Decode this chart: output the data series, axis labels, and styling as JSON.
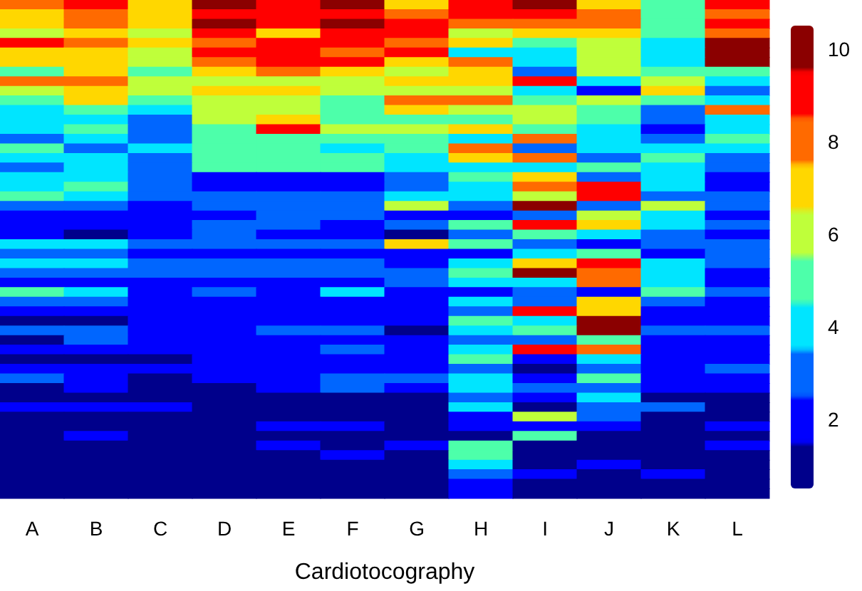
{
  "chart_data": {
    "type": "heatmap",
    "xlabel": "Cardiotocography",
    "categories": [
      "A",
      "B",
      "C",
      "D",
      "E",
      "F",
      "G",
      "H",
      "I",
      "J",
      "K",
      "L"
    ],
    "y_categories": [
      null,
      null,
      null,
      null,
      null,
      null,
      null,
      null,
      null,
      null,
      null,
      null,
      null,
      null,
      null,
      null,
      null,
      null,
      null,
      null,
      null,
      null,
      null,
      null,
      null,
      null,
      null,
      null,
      null,
      null,
      null,
      null,
      null,
      null,
      null,
      null,
      null,
      null,
      null,
      null,
      null,
      null,
      null,
      null,
      null,
      null,
      null,
      null,
      null,
      null,
      null,
      null
    ],
    "clim": [
      0.5,
      10.5
    ],
    "cticks": [
      2,
      4,
      6,
      8,
      10
    ],
    "colors": [
      "#00008b",
      "#0000ff",
      "#0066ff",
      "#00e5ff",
      "#4dffaa",
      "#bfff3a",
      "#ffd700",
      "#ff6a00",
      "#ff0000",
      "#8b0000"
    ],
    "cells": [
      [
        8,
        9,
        7,
        10,
        9,
        10,
        7,
        9,
        10,
        7,
        5,
        9
      ],
      [
        7,
        8,
        7,
        9,
        9,
        9,
        8,
        9,
        9,
        8,
        5,
        8
      ],
      [
        7,
        8,
        7,
        10,
        9,
        10,
        9,
        8,
        8,
        8,
        5,
        9
      ],
      [
        6,
        7,
        6,
        9,
        7,
        9,
        9,
        6,
        7,
        7,
        5,
        8
      ],
      [
        9,
        8,
        7,
        8,
        9,
        9,
        8,
        7,
        5,
        6,
        4,
        10
      ],
      [
        7,
        7,
        6,
        9,
        9,
        8,
        9,
        4,
        4,
        6,
        4,
        10
      ],
      [
        7,
        7,
        6,
        8,
        9,
        9,
        7,
        8,
        4,
        6,
        4,
        10
      ],
      [
        5,
        7,
        5,
        7,
        8,
        7,
        6,
        7,
        3,
        6,
        5,
        5
      ],
      [
        8,
        8,
        6,
        6,
        6,
        6,
        7,
        7,
        9,
        4,
        6,
        4
      ],
      [
        6,
        7,
        6,
        7,
        7,
        6,
        6,
        6,
        4,
        2,
        7,
        3
      ],
      [
        5,
        7,
        5,
        6,
        6,
        5,
        8,
        8,
        5,
        6,
        5,
        4
      ],
      [
        4,
        5,
        4,
        6,
        6,
        5,
        7,
        6,
        6,
        5,
        3,
        8
      ],
      [
        4,
        4,
        3,
        6,
        7,
        5,
        5,
        5,
        6,
        5,
        3,
        4
      ],
      [
        4,
        5,
        3,
        5,
        9,
        6,
        6,
        7,
        5,
        4,
        2,
        4
      ],
      [
        3,
        4,
        3,
        5,
        5,
        5,
        5,
        4,
        8,
        4,
        3,
        5
      ],
      [
        5,
        3,
        4,
        5,
        5,
        4,
        5,
        8,
        3,
        4,
        4,
        4
      ],
      [
        4,
        4,
        3,
        5,
        5,
        5,
        4,
        7,
        8,
        3,
        5,
        3
      ],
      [
        3,
        4,
        3,
        5,
        5,
        5,
        4,
        4,
        4,
        5,
        4,
        3
      ],
      [
        4,
        4,
        3,
        2,
        2,
        2,
        3,
        5,
        7,
        3,
        4,
        2
      ],
      [
        4,
        5,
        3,
        2,
        2,
        2,
        3,
        4,
        8,
        9,
        4,
        2
      ],
      [
        5,
        4,
        3,
        3,
        3,
        3,
        4,
        4,
        6,
        9,
        3,
        3
      ],
      [
        3,
        3,
        2,
        3,
        3,
        3,
        6,
        3,
        10,
        3,
        6,
        3
      ],
      [
        2,
        2,
        2,
        2,
        3,
        3,
        2,
        2,
        3,
        6,
        4,
        2
      ],
      [
        2,
        2,
        2,
        3,
        3,
        2,
        3,
        5,
        9,
        7,
        4,
        3
      ],
      [
        2,
        1,
        2,
        3,
        2,
        2,
        1,
        3,
        5,
        4,
        3,
        2
      ],
      [
        4,
        4,
        3,
        3,
        3,
        3,
        7,
        5,
        3,
        2,
        3,
        3
      ],
      [
        3,
        3,
        2,
        2,
        2,
        2,
        2,
        2,
        4,
        5,
        2,
        3
      ],
      [
        4,
        4,
        3,
        3,
        3,
        3,
        2,
        4,
        7,
        9,
        4,
        3
      ],
      [
        3,
        3,
        3,
        3,
        3,
        3,
        3,
        5,
        10,
        8,
        4,
        2
      ],
      [
        2,
        2,
        2,
        2,
        2,
        2,
        3,
        4,
        4,
        8,
        4,
        2
      ],
      [
        5,
        4,
        2,
        3,
        2,
        4,
        2,
        2,
        3,
        2,
        5,
        3
      ],
      [
        3,
        3,
        2,
        2,
        2,
        2,
        2,
        4,
        3,
        7,
        3,
        2
      ],
      [
        2,
        2,
        2,
        2,
        2,
        2,
        2,
        3,
        9,
        7,
        2,
        2
      ],
      [
        1,
        1,
        2,
        2,
        2,
        2,
        2,
        5,
        4,
        10,
        2,
        2
      ],
      [
        3,
        3,
        2,
        2,
        3,
        3,
        1,
        4,
        5,
        10,
        3,
        3
      ],
      [
        1,
        3,
        2,
        2,
        2,
        2,
        2,
        3,
        3,
        5,
        2,
        2
      ],
      [
        2,
        2,
        2,
        2,
        2,
        3,
        2,
        4,
        9,
        8,
        2,
        2
      ],
      [
        1,
        1,
        1,
        2,
        2,
        2,
        2,
        5,
        2,
        4,
        2,
        2
      ],
      [
        2,
        2,
        2,
        2,
        2,
        2,
        2,
        3,
        1,
        3,
        2,
        3
      ],
      [
        3,
        2,
        1,
        2,
        2,
        3,
        3,
        4,
        2,
        5,
        2,
        2
      ],
      [
        1,
        2,
        1,
        1,
        2,
        3,
        2,
        4,
        3,
        3,
        2,
        2
      ],
      [
        1,
        1,
        1,
        1,
        1,
        1,
        1,
        3,
        2,
        4,
        1,
        1
      ],
      [
        2,
        2,
        2,
        1,
        1,
        1,
        1,
        4,
        1,
        3,
        3,
        1
      ],
      [
        1,
        1,
        1,
        1,
        1,
        1,
        1,
        2,
        6,
        3,
        1,
        1
      ],
      [
        1,
        1,
        1,
        1,
        2,
        2,
        1,
        2,
        2,
        2,
        1,
        2
      ],
      [
        1,
        2,
        1,
        1,
        1,
        1,
        1,
        1,
        5,
        1,
        1,
        1
      ],
      [
        1,
        1,
        1,
        1,
        2,
        1,
        2,
        5,
        1,
        1,
        1,
        2
      ],
      [
        1,
        1,
        1,
        1,
        1,
        2,
        1,
        5,
        1,
        1,
        1,
        1
      ],
      [
        1,
        1,
        1,
        1,
        1,
        1,
        1,
        4,
        1,
        2,
        1,
        1
      ],
      [
        1,
        1,
        1,
        1,
        1,
        1,
        1,
        3,
        2,
        1,
        2,
        1
      ],
      [
        1,
        1,
        1,
        1,
        1,
        1,
        1,
        2,
        1,
        1,
        1,
        1
      ],
      [
        1,
        1,
        1,
        1,
        1,
        1,
        1,
        2,
        1,
        1,
        1,
        1
      ]
    ]
  }
}
